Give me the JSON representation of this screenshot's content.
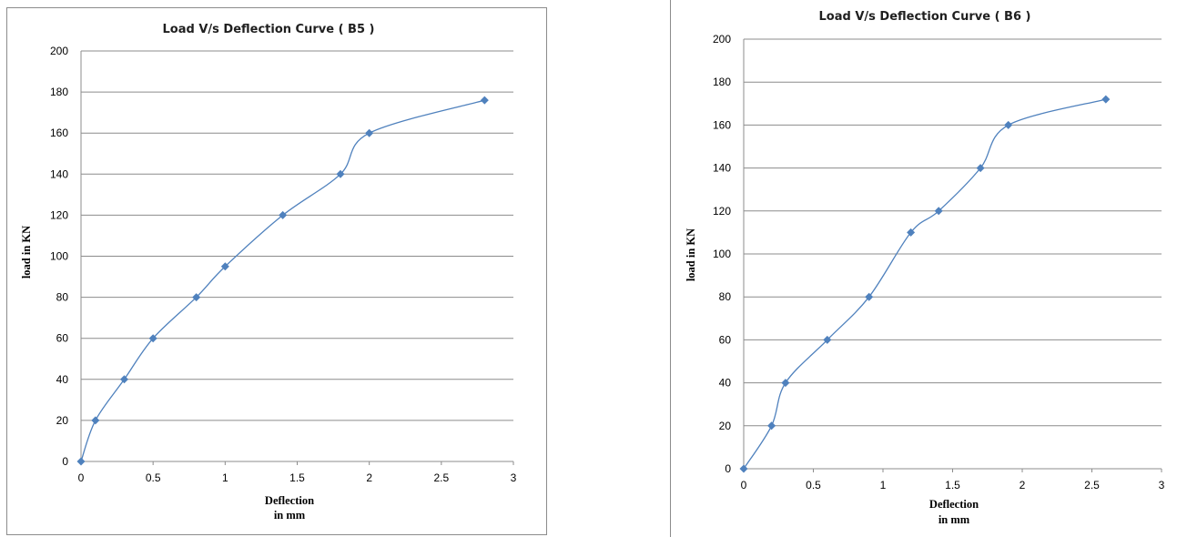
{
  "chart_data": [
    {
      "type": "line",
      "title": "Load V/s Deflection Curve ( B5 )",
      "xlabel": [
        "Deflection",
        "in mm"
      ],
      "ylabel": "load in KN",
      "xlim": [
        0,
        3
      ],
      "ylim": [
        0,
        200
      ],
      "xticks": [
        "0",
        "0.5",
        "1",
        "1.5",
        "2",
        "2.5",
        "3"
      ],
      "yticks": [
        "0",
        "20",
        "40",
        "60",
        "80",
        "100",
        "120",
        "140",
        "160",
        "180",
        "200"
      ],
      "grid": true,
      "legend": "none",
      "smooth": true,
      "color": "#4f81bd",
      "marker": "diamond",
      "series": [
        {
          "x": [
            0,
            0.1,
            0.3,
            0.5,
            0.8,
            1.0,
            1.4,
            1.8,
            2.0,
            2.8
          ],
          "y": [
            0,
            20,
            40,
            60,
            80,
            95,
            120,
            140,
            160,
            176
          ]
        }
      ]
    },
    {
      "type": "line",
      "title": "Load V/s Deflection Curve ( B6 )",
      "xlabel": [
        "Deflection",
        "in mm"
      ],
      "ylabel": "load in KN",
      "xlim": [
        0,
        3
      ],
      "ylim": [
        0,
        200
      ],
      "xticks": [
        "0",
        "0.5",
        "1",
        "1.5",
        "2",
        "2.5",
        "3"
      ],
      "yticks": [
        "0",
        "20",
        "40",
        "60",
        "80",
        "100",
        "120",
        "140",
        "160",
        "180",
        "200"
      ],
      "grid": true,
      "legend": "none",
      "smooth": true,
      "color": "#4f81bd",
      "marker": "diamond",
      "series": [
        {
          "x": [
            0,
            0.2,
            0.3,
            0.6,
            0.9,
            1.2,
            1.4,
            1.7,
            1.9,
            2.6
          ],
          "y": [
            0,
            20,
            40,
            60,
            80,
            110,
            120,
            140,
            160,
            172
          ]
        }
      ]
    }
  ]
}
